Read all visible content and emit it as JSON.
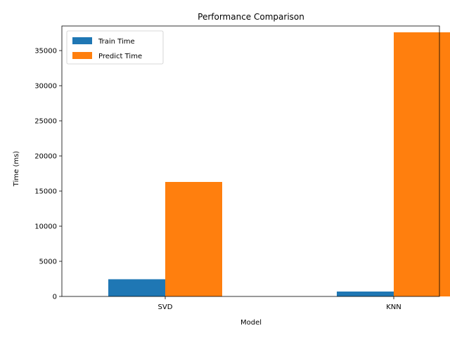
{
  "chart_data": {
    "type": "bar",
    "title": "Performance Comparison",
    "xlabel": "Model",
    "ylabel": "Time (ms)",
    "categories": [
      "SVD",
      "KNN"
    ],
    "series": [
      {
        "name": "Train Time",
        "values": [
          2450,
          700
        ],
        "color": "#1f77b4"
      },
      {
        "name": "Predict Time",
        "values": [
          16300,
          37600
        ],
        "color": "#ff7f0e"
      }
    ],
    "ylim": [
      0,
      38500
    ],
    "yticks": [
      0,
      5000,
      10000,
      15000,
      20000,
      25000,
      30000,
      35000
    ],
    "grid": false,
    "legend_position": "top-left"
  }
}
